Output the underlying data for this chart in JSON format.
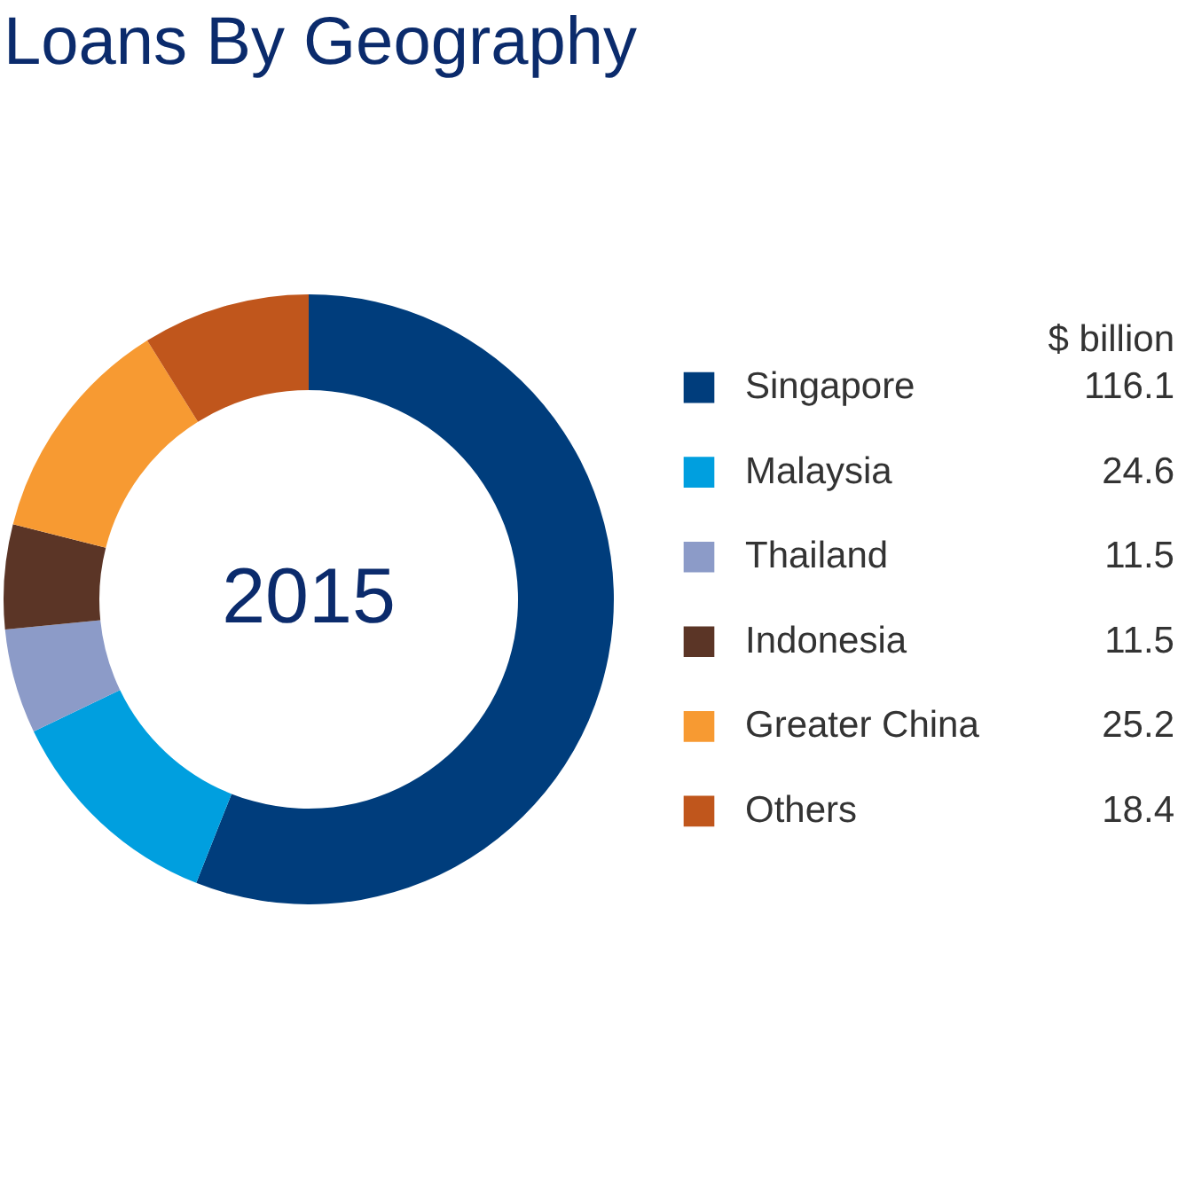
{
  "chart_data": {
    "type": "donut",
    "title": "Loans By Geography",
    "legend_title": "$ billion",
    "categories": [
      "Singapore",
      "Malaysia",
      "Thailand",
      "Indonesia",
      "Greater China",
      "Others"
    ],
    "values": [
      116.1,
      24.6,
      11.5,
      11.5,
      25.2,
      18.4
    ],
    "colors": [
      "#003d7c",
      "#009fdf",
      "#8c9bc8",
      "#5b3526",
      "#f79a32",
      "#c0561c"
    ],
    "annotations": [
      "2015"
    ],
    "data_labels": true,
    "legend": "right"
  }
}
